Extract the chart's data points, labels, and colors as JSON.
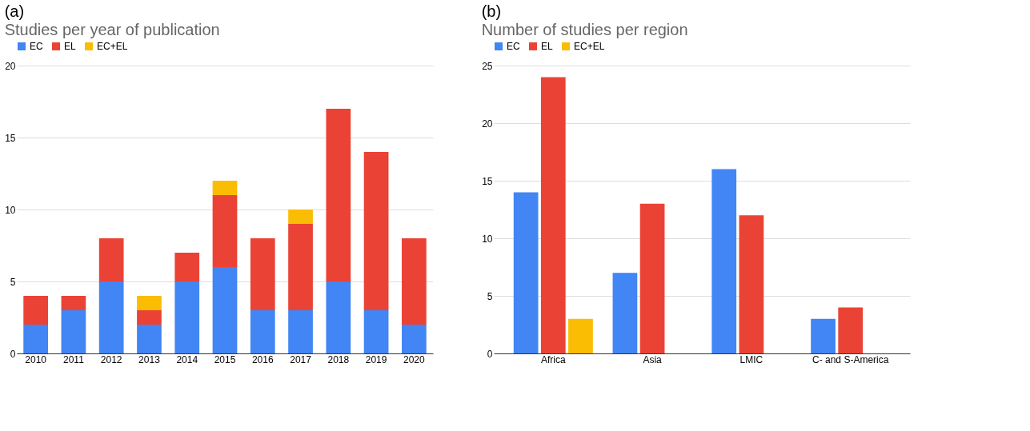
{
  "chart_data": [
    {
      "type": "bar",
      "title": "(a)",
      "subtitle": "Studies per year of publication",
      "stacked": true,
      "legend": "top",
      "grid": "y",
      "categories": [
        "2010",
        "2011",
        "2012",
        "2013",
        "2014",
        "2015",
        "2016",
        "2017",
        "2018",
        "2019",
        "2020"
      ],
      "series": [
        {
          "name": "EC",
          "color": "#4285f4",
          "values": [
            2,
            3,
            5,
            2,
            5,
            6,
            3,
            3,
            5,
            3,
            2
          ]
        },
        {
          "name": "EL",
          "color": "#ea4335",
          "values": [
            2,
            1,
            3,
            1,
            2,
            5,
            5,
            6,
            12,
            11,
            6
          ]
        },
        {
          "name": "EC+EL",
          "color": "#fbbc04",
          "values": [
            0,
            0,
            0,
            1,
            0,
            1,
            0,
            1,
            0,
            0,
            0
          ]
        }
      ],
      "ylim": [
        0,
        20
      ],
      "yticks": [
        0,
        5,
        10,
        15,
        20
      ]
    },
    {
      "type": "bar",
      "title": "(b)",
      "subtitle": "Number of studies per region",
      "legend": "top",
      "grid": "y",
      "categories": [
        "Africa",
        "Asia",
        "LMIC",
        "C- and S-America"
      ],
      "series": [
        {
          "name": "EC",
          "color": "#4285f4",
          "values": [
            14,
            7,
            16,
            3
          ]
        },
        {
          "name": "EL",
          "color": "#ea4335",
          "values": [
            24,
            13,
            12,
            4
          ]
        },
        {
          "name": "EC+EL",
          "color": "#fbbc04",
          "values": [
            3,
            null,
            null,
            null
          ]
        }
      ],
      "ylim": [
        0,
        25
      ],
      "yticks": [
        0,
        5,
        10,
        15,
        20,
        25
      ]
    }
  ]
}
